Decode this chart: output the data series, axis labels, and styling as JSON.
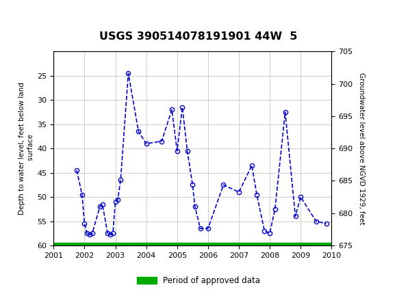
{
  "title": "USGS 390514078191901 44W  5",
  "ylabel_left": "Depth to water level, feet below land\n surface",
  "ylabel_right": "Groundwater level above NGVD 1929, feet",
  "xlim": [
    2001,
    2010
  ],
  "ylim_left_top": 20,
  "ylim_left_bottom": 60,
  "ylim_right_top": 705,
  "ylim_right_bottom": 675,
  "x_ticks": [
    2001,
    2002,
    2003,
    2004,
    2005,
    2006,
    2007,
    2008,
    2009,
    2010
  ],
  "y_ticks_left": [
    25,
    30,
    35,
    40,
    45,
    50,
    55,
    60
  ],
  "y_ticks_right": [
    705,
    700,
    695,
    690,
    685,
    680,
    675
  ],
  "data_x": [
    2001.75,
    2001.92,
    2002.0,
    2002.08,
    2002.17,
    2002.25,
    2002.5,
    2002.58,
    2002.75,
    2002.83,
    2002.92,
    2003.0,
    2003.08,
    2003.17,
    2003.42,
    2003.75,
    2004.0,
    2004.5,
    2004.83,
    2005.0,
    2005.17,
    2005.33,
    2005.5,
    2005.58,
    2005.75,
    2006.0,
    2006.5,
    2007.0,
    2007.42,
    2007.58,
    2007.83,
    2008.0,
    2008.17,
    2008.5,
    2008.83,
    2009.0,
    2009.5,
    2009.83
  ],
  "data_y": [
    44.5,
    49.5,
    55.5,
    57.5,
    57.8,
    57.5,
    52.0,
    51.5,
    57.5,
    57.8,
    57.5,
    51.0,
    50.5,
    46.5,
    24.5,
    36.5,
    39.0,
    38.5,
    32.0,
    40.5,
    31.5,
    40.5,
    47.5,
    52.0,
    56.5,
    56.5,
    47.5,
    49.0,
    43.5,
    49.5,
    57.0,
    57.5,
    52.5,
    32.5,
    54.0,
    50.0,
    55.0,
    55.5
  ],
  "line_color": "#0000cc",
  "marker_color": "#0000cc",
  "grid_color": "#cccccc",
  "background_color": "#ffffff",
  "header_bg_color": "#006633",
  "header_text_color": "#ffffff",
  "approved_bar_color": "#00aa00",
  "legend_label": "Period of approved data",
  "fig_width": 5.8,
  "fig_height": 4.3,
  "dpi": 100
}
